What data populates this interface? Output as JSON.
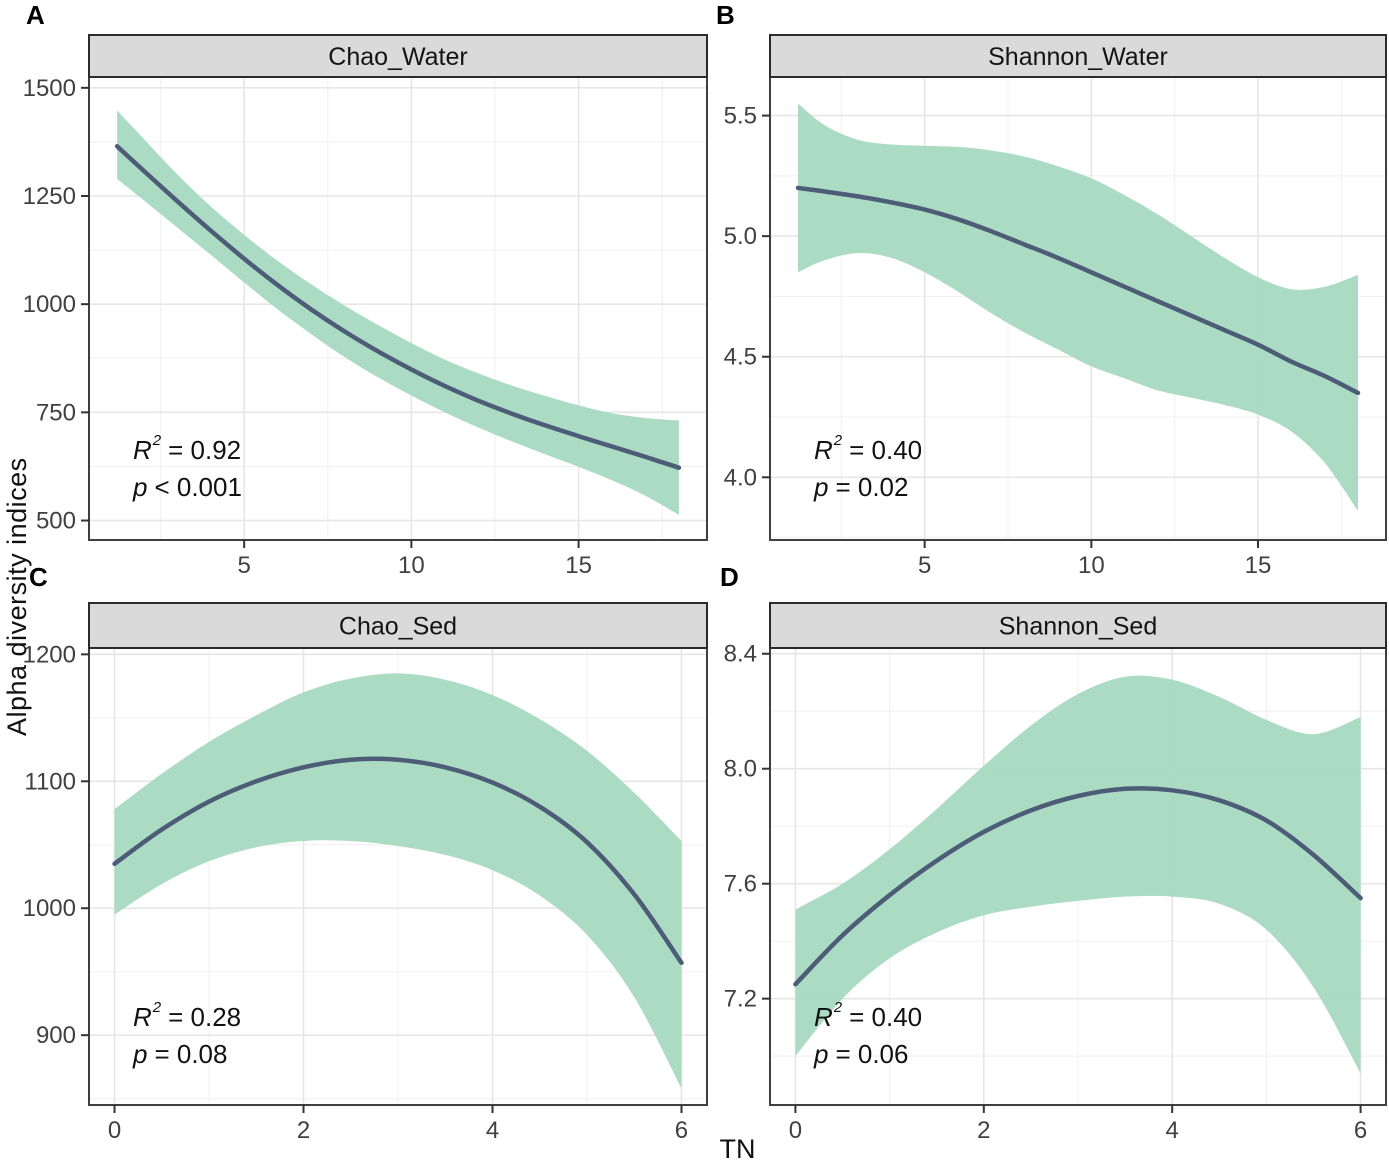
{
  "figure": {
    "ylabel": "Alpha diversity indices",
    "xlabel": "TN",
    "symbols": {
      "r": "R",
      "r_sup": "2",
      "p": "p"
    },
    "colors": {
      "band": "#a7d9c0",
      "line": "#4d5d78",
      "strip_bg": "#dadada",
      "strip_border": "#2b2b2b",
      "panel_border": "#3f3f3f",
      "grid_major": "#e6e6e6",
      "grid_minor": "#f2f2f2",
      "tick": "#333333",
      "tick_text": "#404040",
      "strip_text": "#141414"
    }
  },
  "chart_data": [
    {
      "letter": "A",
      "title": "Chao_Water",
      "type": "line",
      "xlim": [
        0.36,
        18.84
      ],
      "ylim": [
        455,
        1525
      ],
      "xticks": [
        5,
        10,
        15
      ],
      "xtick_labels": [
        "5",
        "10",
        "15"
      ],
      "xticks_minor": [
        2.5,
        7.5,
        12.5,
        17.5
      ],
      "yticks": [
        500,
        750,
        1000,
        1250,
        1500
      ],
      "ytick_labels": [
        "500",
        "750",
        "1000",
        "1250",
        "1500"
      ],
      "yticks_minor": [
        625,
        875,
        1125,
        1375
      ],
      "stats": {
        "r2": "= 0.92",
        "p": "< 0.001"
      },
      "x": [
        1.2,
        2,
        3,
        4,
        5,
        6,
        7,
        8,
        9,
        10,
        11,
        12,
        13,
        14,
        15,
        16,
        17,
        18
      ],
      "line": [
        1365,
        1308,
        1238,
        1170,
        1105,
        1044,
        988,
        937,
        891,
        849,
        811,
        777,
        747,
        720,
        695,
        671,
        647,
        622
      ],
      "upper": [
        1448,
        1382,
        1300,
        1226,
        1160,
        1100,
        1046,
        997,
        952,
        910,
        872,
        840,
        812,
        788,
        766,
        748,
        737,
        731
      ],
      "lower": [
        1290,
        1240,
        1177,
        1114,
        1050,
        988,
        931,
        878,
        831,
        789,
        750,
        715,
        683,
        653,
        624,
        593,
        557,
        513
      ]
    },
    {
      "letter": "B",
      "title": "Shannon_Water",
      "type": "line",
      "xlim": [
        0.36,
        18.84
      ],
      "ylim": [
        3.74,
        5.66
      ],
      "xticks": [
        5,
        10,
        15
      ],
      "xtick_labels": [
        "5",
        "10",
        "15"
      ],
      "xticks_minor": [
        2.5,
        7.5,
        12.5,
        17.5
      ],
      "yticks": [
        4.0,
        4.5,
        5.0,
        5.5
      ],
      "ytick_labels": [
        "4.0",
        "4.5",
        "5.0",
        "5.5"
      ],
      "yticks_minor": [
        3.75,
        4.25,
        4.75,
        5.25
      ],
      "stats": {
        "r2": "= 0.40",
        "p": "= 0.02"
      },
      "x": [
        1.2,
        2,
        3,
        4,
        5,
        6,
        7,
        8,
        9,
        10,
        11,
        12,
        13,
        14,
        15,
        16,
        17,
        18
      ],
      "line": [
        5.2,
        5.185,
        5.165,
        5.14,
        5.11,
        5.07,
        5.02,
        4.965,
        4.91,
        4.85,
        4.79,
        4.73,
        4.67,
        4.61,
        4.55,
        4.48,
        4.42,
        4.35
      ],
      "upper": [
        5.55,
        5.46,
        5.4,
        5.38,
        5.375,
        5.37,
        5.355,
        5.33,
        5.29,
        5.24,
        5.17,
        5.09,
        5.0,
        4.91,
        4.83,
        4.78,
        4.79,
        4.84
      ],
      "lower": [
        4.85,
        4.9,
        4.93,
        4.91,
        4.85,
        4.77,
        4.68,
        4.6,
        4.53,
        4.46,
        4.41,
        4.36,
        4.33,
        4.3,
        4.26,
        4.19,
        4.06,
        3.86
      ]
    },
    {
      "letter": "C",
      "title": "Chao_Sed",
      "type": "line",
      "xlim": [
        -0.27,
        6.27
      ],
      "ylim": [
        845,
        1205
      ],
      "xticks": [
        0,
        2,
        4,
        6
      ],
      "xtick_labels": [
        "0",
        "2",
        "4",
        "6"
      ],
      "xticks_minor": [
        1,
        3,
        5
      ],
      "yticks": [
        900,
        1000,
        1100,
        1200
      ],
      "ytick_labels": [
        "900",
        "1000",
        "1100",
        "1200"
      ],
      "yticks_minor": [
        850,
        950,
        1050,
        1150
      ],
      "stats": {
        "r2": "= 0.28",
        "p": "= 0.08"
      },
      "x": [
        0,
        0.5,
        1,
        1.5,
        2,
        2.5,
        3,
        3.5,
        4,
        4.5,
        5,
        5.5,
        6
      ],
      "line": [
        1035,
        1062,
        1084,
        1100,
        1111,
        1117,
        1117,
        1111,
        1099,
        1080,
        1052,
        1011,
        957
      ],
      "upper": [
        1078,
        1106,
        1131,
        1152,
        1170,
        1181,
        1185,
        1180,
        1168,
        1149,
        1124,
        1091,
        1053
      ],
      "lower": [
        995,
        1019,
        1037,
        1048,
        1053,
        1053,
        1049,
        1042,
        1030,
        1010,
        979,
        930,
        858
      ]
    },
    {
      "letter": "D",
      "title": "Shannon_Sed",
      "type": "line",
      "xlim": [
        -0.27,
        6.27
      ],
      "ylim": [
        6.83,
        8.42
      ],
      "xticks": [
        0,
        2,
        4,
        6
      ],
      "xtick_labels": [
        "0",
        "2",
        "4",
        "6"
      ],
      "xticks_minor": [
        1,
        3,
        5
      ],
      "yticks": [
        7.2,
        7.6,
        8.0,
        8.4
      ],
      "ytick_labels": [
        "7.2",
        "7.6",
        "8.0",
        "8.4"
      ],
      "yticks_minor": [
        7.0,
        7.4,
        7.8,
        8.2
      ],
      "stats": {
        "r2": "= 0.40",
        "p": "= 0.06"
      },
      "x": [
        0,
        0.5,
        1,
        1.5,
        2,
        2.5,
        3,
        3.5,
        4,
        4.5,
        5,
        5.5,
        6
      ],
      "line": [
        7.25,
        7.42,
        7.56,
        7.68,
        7.78,
        7.855,
        7.905,
        7.93,
        7.925,
        7.89,
        7.82,
        7.7,
        7.55
      ],
      "upper": [
        7.51,
        7.6,
        7.72,
        7.86,
        8.01,
        8.15,
        8.26,
        8.32,
        8.31,
        8.25,
        8.17,
        8.12,
        8.18
      ],
      "lower": [
        7.0,
        7.2,
        7.34,
        7.43,
        7.49,
        7.52,
        7.54,
        7.555,
        7.555,
        7.53,
        7.44,
        7.24,
        6.94
      ]
    }
  ]
}
